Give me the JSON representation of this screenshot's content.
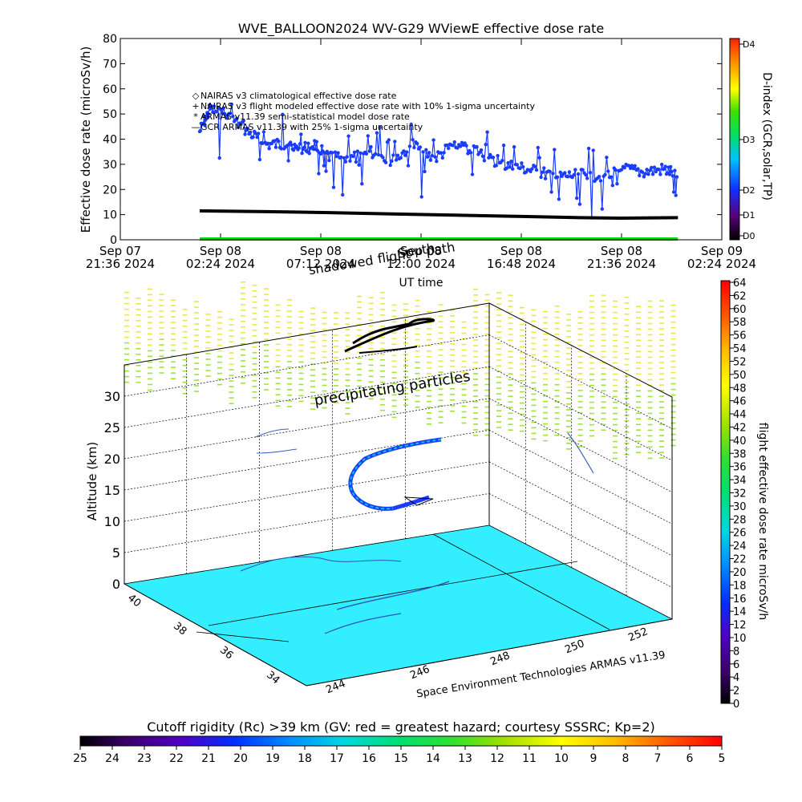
{
  "chart_data": [
    {
      "type": "line",
      "title": "WVE_BALLOON2024 WV-G29 WViewE effective dose rate",
      "xlabel": "UT time",
      "ylabel": "Effective dose rate (microSv/h)",
      "ylim": [
        0,
        80
      ],
      "y_ticks": [
        0,
        10,
        20,
        30,
        40,
        50,
        60,
        70,
        80
      ],
      "xlim_hours_labels": [
        "Sep 07 21:36 2024",
        "Sep 09 02:24 2024"
      ],
      "x_tick_labels": [
        [
          "Sep 07",
          "21:36 2024"
        ],
        [
          "Sep 08",
          "02:24 2024"
        ],
        [
          "Sep 08",
          "07:12 2024"
        ],
        [
          "Sep 08",
          "12:00 2024"
        ],
        [
          "Sep 08",
          "16:48 2024"
        ],
        [
          "Sep 08",
          "21:36 2024"
        ],
        [
          "Sep 09",
          "02:24 2024"
        ]
      ],
      "legend": [
        {
          "symbol": "◇",
          "color": "#cc3333",
          "text": "NAIRAS v3 climatological effective dose rate"
        },
        {
          "symbol": "+",
          "color": "#3333cc",
          "text": "NAIRAS v3 flight modeled effective dose rate with 10% 1-sigma uncertainty"
        },
        {
          "symbol": "*",
          "color": "#00cc00",
          "text": "ARMAS v11.39 semi-statistical model dose rate"
        },
        {
          "symbol": "—",
          "color": "#000000",
          "text": "GCR ARMAS v11.39 with 25% 1-sigma uncertainty"
        }
      ],
      "legend_position": "upper-left",
      "right_axis": {
        "label": "D-index (GCR,solar,TP)",
        "ticks": [
          "D0",
          "D1",
          "D2",
          "D3",
          "D4"
        ]
      },
      "series": [
        {
          "color": "#1a3cff",
          "x_hours_from_start": [
            3.8,
            4.3,
            5.2,
            6.1,
            7.0,
            7.9,
            8.6,
            9.3,
            10.0,
            11.0,
            12.0,
            13.0,
            14.0,
            15.0,
            16.0,
            17.0,
            18.0,
            19.0,
            20.0,
            21.0,
            22.0,
            23.0,
            24.0,
            25.0,
            26.0,
            26.7
          ],
          "values": [
            43,
            52,
            49,
            43,
            38,
            38,
            36,
            38,
            33,
            32,
            35,
            31,
            38,
            32,
            38,
            36,
            30,
            29,
            27,
            25,
            26,
            24,
            28,
            27,
            28,
            26
          ]
        },
        {
          "color": "#000000",
          "x_hours_from_start": [
            3.8,
            7.0,
            10.0,
            13.0,
            16.0,
            19.0,
            22.0,
            24.0,
            26.7
          ],
          "values": [
            11.5,
            11.2,
            10.8,
            10.3,
            9.8,
            9.3,
            8.8,
            8.6,
            8.8
          ]
        },
        {
          "color": "#00dd00",
          "x_hours_from_start": [
            3.8,
            26.7
          ],
          "values": [
            0,
            0
          ]
        }
      ]
    },
    {
      "type": "scatter",
      "ylabel": "Altitude (km)",
      "z_ticks": [
        0,
        5,
        10,
        15,
        20,
        25,
        30
      ],
      "longitude_ticks": [
        244,
        246,
        248,
        250,
        252
      ],
      "latitude_ticks": [
        34,
        36,
        38,
        40
      ],
      "annotations": [
        "precipitating particles",
        "Space Environment Technologies ARMAS v11.39"
      ],
      "colorbar": {
        "label": "flight effective dose rate microSv/h",
        "ticks": [
          0,
          2,
          4,
          6,
          8,
          10,
          12,
          14,
          16,
          18,
          20,
          22,
          24,
          26,
          28,
          30,
          32,
          34,
          36,
          38,
          40,
          42,
          44,
          46,
          48,
          50,
          52,
          54,
          56,
          58,
          60,
          62,
          64
        ]
      }
    },
    {
      "type": "heatmap",
      "title": "Cutoff rigidity (Rc) >39 km (GV: red = greatest hazard; courtesy SSSRC; Kp=2)",
      "colorbar_ticks": [
        25,
        24,
        23,
        22,
        21,
        20,
        19,
        18,
        17,
        16,
        15,
        14,
        13,
        12,
        11,
        10,
        9,
        8,
        7,
        6,
        5
      ]
    }
  ],
  "overlay_text": {
    "shadowed": "shadowed",
    "flight": "flight",
    "path": "path",
    "south": "South"
  },
  "colors": {
    "plot_blue": "#1a3cff",
    "gcr_black": "#000000",
    "statistical_green": "#00dd00",
    "ground_cyan": "#33eeff",
    "shadow_yellow": "#e8e84a",
    "shadow_green": "#9ee33c"
  }
}
